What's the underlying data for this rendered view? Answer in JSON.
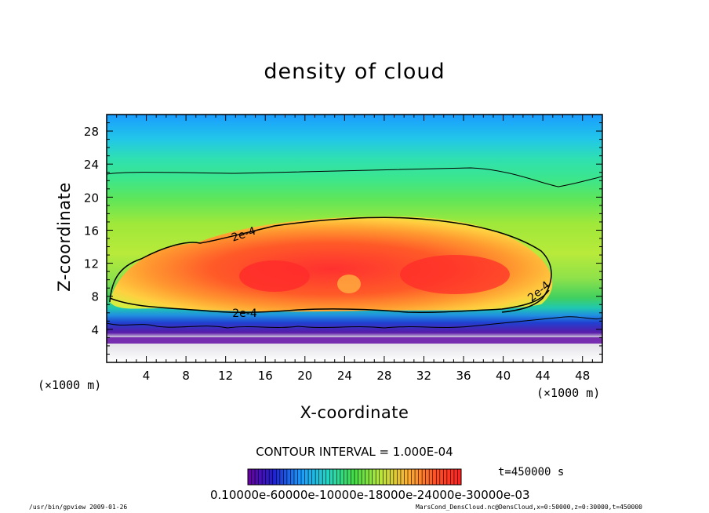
{
  "chart_data": {
    "type": "heatmap",
    "title": "density of cloud",
    "xlabel": "X-coordinate",
    "ylabel": "Z-coordinate",
    "x_unit": "(×1000 m)",
    "y_unit": "(×1000 m)",
    "xlim": [
      0,
      50
    ],
    "ylim": [
      0,
      30
    ],
    "x_ticks": [
      "4",
      "8",
      "12",
      "16",
      "20",
      "24",
      "28",
      "32",
      "36",
      "40",
      "44",
      "48"
    ],
    "y_ticks": [
      "4",
      "8",
      "12",
      "16",
      "20",
      "24",
      "28"
    ],
    "contour_interval": "CONTOUR INTERVAL = 1.000E-04",
    "contour_label": "2e-4",
    "time_label": "t=450000 s",
    "colorbar_labels": "0.10000e-60000e-10000e-18000e-24000e-30000e-03",
    "colors": {
      "low": "#7f00a0",
      "mid": "#33cc33",
      "high": "#ff2020"
    }
  },
  "footer": {
    "left": "/usr/bin/gpview  2009-01-26",
    "right": "MarsCond_DensCloud.nc@DensCloud,x=0:50000,z=0:30000,t=450000"
  }
}
